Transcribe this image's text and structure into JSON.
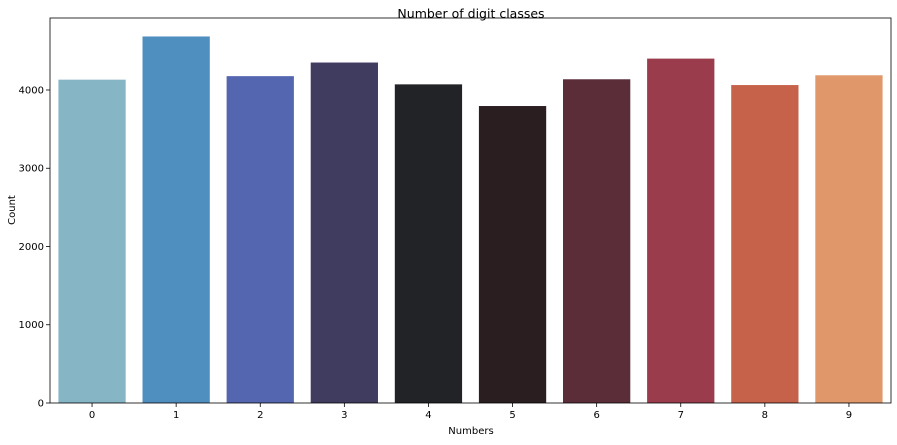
{
  "chart_data": {
    "type": "bar",
    "title": "Number of digit classes",
    "xlabel": "Numbers",
    "ylabel": "Count",
    "categories": [
      "0",
      "1",
      "2",
      "3",
      "4",
      "5",
      "6",
      "7",
      "8",
      "9"
    ],
    "values": [
      4132,
      4684,
      4177,
      4351,
      4072,
      3795,
      4137,
      4401,
      4063,
      4188
    ],
    "colors": [
      "#86b6c6",
      "#4f8fc0",
      "#5466b0",
      "#3f3c60",
      "#222327",
      "#2b1e21",
      "#5b2d38",
      "#9a3c4c",
      "#c6614a",
      "#e0976a"
    ],
    "ylim": [
      0,
      4920
    ],
    "yticks": [
      0,
      1000,
      2000,
      3000,
      4000
    ],
    "ytick_labels": [
      "0",
      "1000",
      "2000",
      "3000",
      "4000"
    ],
    "grid": false,
    "legend": "none"
  }
}
